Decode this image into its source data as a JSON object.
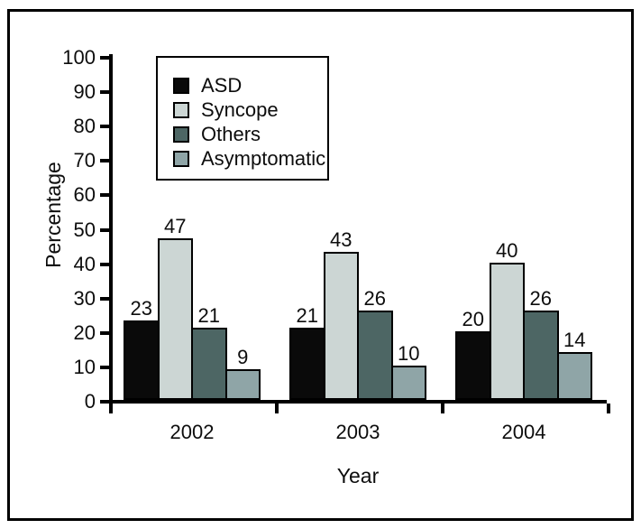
{
  "figure": {
    "background": "#ffffff",
    "frame_color": "#000000"
  },
  "chart_data": {
    "type": "bar",
    "title": "",
    "categories": [
      "2002",
      "2003",
      "2004"
    ],
    "series": [
      {
        "name": "ASD",
        "color": "#0a0a0a",
        "values": [
          23,
          21,
          20
        ]
      },
      {
        "name": "Syncope",
        "color": "#ccd6d4",
        "values": [
          47,
          43,
          40
        ]
      },
      {
        "name": "Others",
        "color": "#4d6664",
        "values": [
          21,
          26,
          26
        ]
      },
      {
        "name": "Asymptomatic",
        "color": "#8fa5a7",
        "values": [
          9,
          10,
          14
        ]
      }
    ],
    "xlabel": "Year",
    "ylabel": "Percentage",
    "ylim": [
      0,
      100
    ],
    "ytick_step": 10,
    "grid": false,
    "legend_position": "top-left",
    "bar_border_color": "#000000"
  }
}
